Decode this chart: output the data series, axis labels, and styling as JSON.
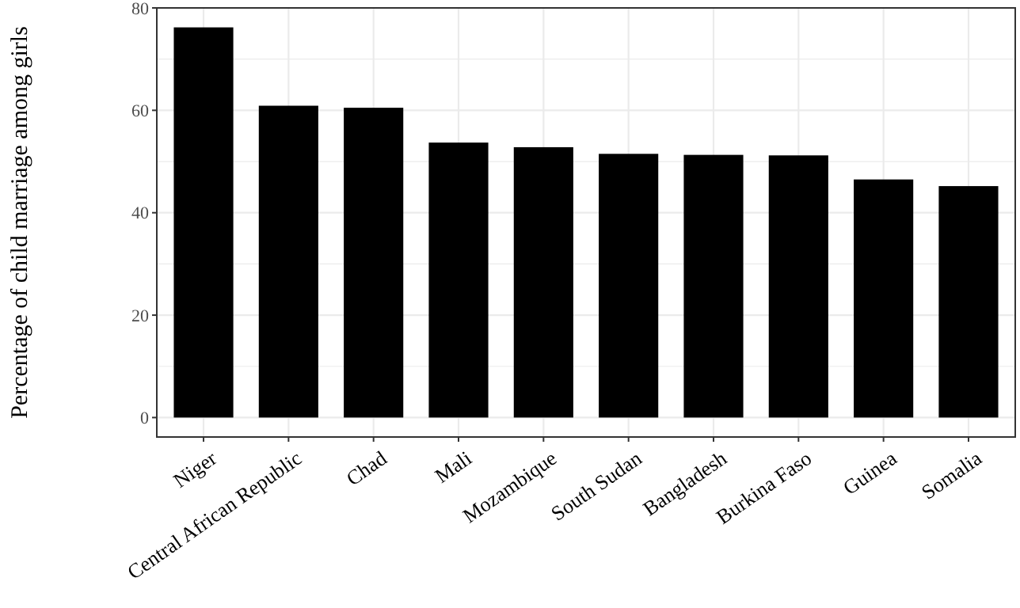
{
  "chart_data": {
    "type": "bar",
    "ylabel": "Percentage of child marriage among girls",
    "categories": [
      "Niger",
      "Central African Republic",
      "Chad",
      "Mali",
      "Mozambique",
      "South Sudan",
      "Bangladesh",
      "Burkina Faso",
      "Guinea",
      "Somalia"
    ],
    "values": [
      76.2,
      60.9,
      60.5,
      53.7,
      52.8,
      51.5,
      51.3,
      51.2,
      46.5,
      45.2
    ],
    "color": "#000000",
    "ylim": [
      -3.8,
      80
    ],
    "yticks": [
      0,
      {
        "value": 10,
        "label": null
      },
      20,
      {
        "value": 30,
        "label": null
      },
      40,
      {
        "value": 50,
        "label": null
      },
      60,
      {
        "value": 70,
        "label": null
      },
      80
    ],
    "grid": true
  }
}
